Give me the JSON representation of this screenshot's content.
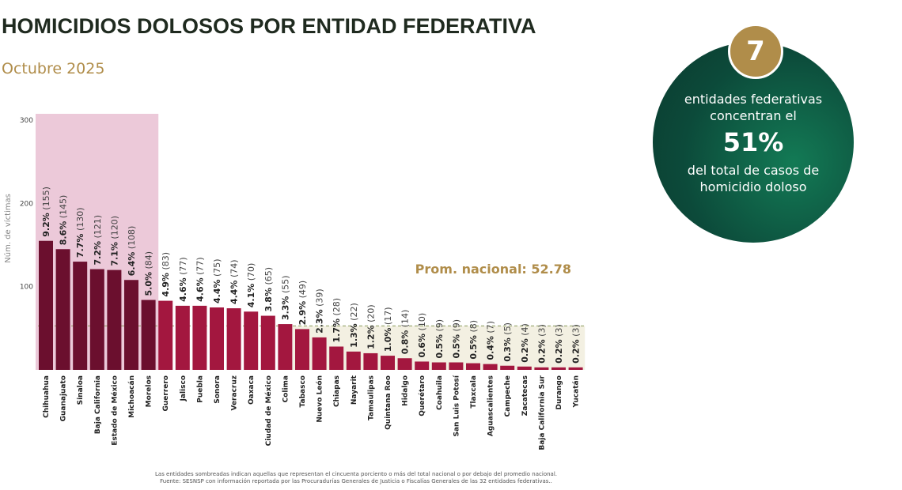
{
  "header": {
    "title": "HOMICIDIOS DOLOSOS POR ENTIDAD FEDERATIVA",
    "subtitle": "Octubre 2025"
  },
  "callout": {
    "number": "7",
    "line1": "entidades federativas",
    "line2": "concentran el",
    "percent": "51%",
    "line3": "del total de casos de",
    "line4": "homicidio doloso",
    "color": "#0c4a3a",
    "badge_color": "#b08d4a"
  },
  "chart_data": {
    "type": "bar",
    "ylabel": "Núm. de víctimas",
    "ylim": [
      0,
      300
    ],
    "yticks": [
      100,
      200,
      300
    ],
    "average_label": "Prom. nacional: 52.78",
    "average": 52.78,
    "colors": {
      "top": "#6b0f2e",
      "rest": "#a3173f",
      "top_shade": "#ecc9d9",
      "low_shade": "#f3f0e2",
      "avg_text": "#b08d4a"
    },
    "categories": [
      "Chihuahua",
      "Guanajuato",
      "Sinaloa",
      "Baja California",
      "Estado de México",
      "Michoacán",
      "Morelos",
      "Guerrero",
      "Jalisco",
      "Puebla",
      "Sonora",
      "Veracruz",
      "Oaxaca",
      "Ciudad de México",
      "Colima",
      "Tabasco",
      "Nuevo León",
      "Chiapas",
      "Nayarit",
      "Tamaulipas",
      "Quintana Roo",
      "Hidalgo",
      "Querétaro",
      "Coahuila",
      "San Luis Potosí",
      "Tlaxcala",
      "Aguascalientes",
      "Campeche",
      "Zacatecas",
      "Baja California Sur",
      "Durango",
      "Yucatán"
    ],
    "values": [
      155,
      145,
      130,
      121,
      120,
      108,
      84,
      83,
      77,
      77,
      75,
      74,
      70,
      65,
      55,
      49,
      39,
      28,
      22,
      20,
      17,
      14,
      10,
      9,
      9,
      8,
      7,
      5,
      4,
      3,
      3,
      3
    ],
    "percents": [
      "9.2%",
      "8.6%",
      "7.7%",
      "7.2%",
      "7.1%",
      "6.4%",
      "5.0%",
      "4.9%",
      "4.6%",
      "4.6%",
      "4.4%",
      "4.4%",
      "4.1%",
      "3.8%",
      "3.3%",
      "2.9%",
      "2.3%",
      "1.7%",
      "1.3%",
      "1.2%",
      "1.0%",
      "0.8%",
      "0.6%",
      "0.5%",
      "0.5%",
      "0.5%",
      "0.4%",
      "0.3%",
      "0.2%",
      "0.2%",
      "0.2%",
      "0.2%"
    ],
    "top_group_count": 7
  },
  "footer": {
    "line1": "Las entidades sombreadas indican aquellas que representan el cincuenta porciento o más del total nacional o por debajo del promedio nacional.",
    "line2": "Fuente: SESNSP con información reportada por las Procuradurías Generales de Justicia o Fiscalías Generales de las 32 entidades federativas.."
  }
}
